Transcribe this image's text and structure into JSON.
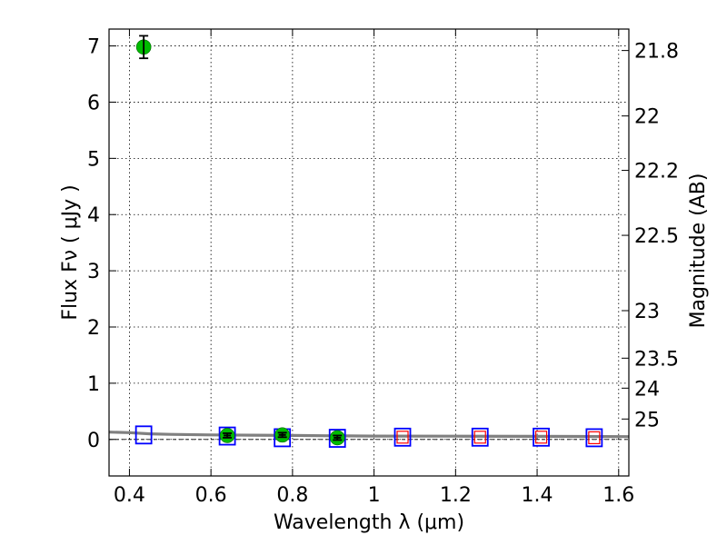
{
  "chart_data": {
    "type": "scatter",
    "xlabel": "Wavelength  λ (μm)",
    "ylabel": "Flux  Fν  ( μJy )",
    "y2label": "Magnitude (AB)",
    "xlim": [
      0.35,
      1.625
    ],
    "ylim": [
      -0.65,
      7.3
    ],
    "grid": true,
    "x_ticks": [
      {
        "value": 0.4,
        "label": "0.4"
      },
      {
        "value": 0.6,
        "label": "0.6"
      },
      {
        "value": 0.8,
        "label": "0.8"
      },
      {
        "value": 1.0,
        "label": "1"
      },
      {
        "value": 1.2,
        "label": "1.2"
      },
      {
        "value": 1.4,
        "label": "1.4"
      },
      {
        "value": 1.6,
        "label": "1.6"
      }
    ],
    "y_ticks": [
      {
        "value": 0,
        "label": "0"
      },
      {
        "value": 1,
        "label": "1"
      },
      {
        "value": 2,
        "label": "2"
      },
      {
        "value": 3,
        "label": "3"
      },
      {
        "value": 4,
        "label": "4"
      },
      {
        "value": 5,
        "label": "5"
      },
      {
        "value": 6,
        "label": "6"
      },
      {
        "value": 7,
        "label": "7"
      }
    ],
    "y2_ticks": [
      {
        "mag": 21.8,
        "label": "21.8"
      },
      {
        "mag": 22.0,
        "label": "22"
      },
      {
        "mag": 22.2,
        "label": "22.2"
      },
      {
        "mag": 22.5,
        "label": "22.5"
      },
      {
        "mag": 23.0,
        "label": "23"
      },
      {
        "mag": 23.5,
        "label": "23.5"
      },
      {
        "mag": 24.0,
        "label": "24"
      },
      {
        "mag": 25.0,
        "label": "25"
      }
    ],
    "series": [
      {
        "marker": "circle",
        "color": "#00bb00",
        "points": [
          {
            "x": 0.435,
            "y": 6.98,
            "err": 0.2
          },
          {
            "x": 0.64,
            "y": 0.07,
            "err": 0.04
          },
          {
            "x": 0.775,
            "y": 0.08,
            "err": 0.04
          },
          {
            "x": 0.91,
            "y": 0.03,
            "err": 0.04
          }
        ]
      },
      {
        "marker": "open-square",
        "color": "#0000ff",
        "points": [
          {
            "x": 0.435,
            "y": 0.08
          },
          {
            "x": 0.64,
            "y": 0.06
          },
          {
            "x": 0.775,
            "y": 0.03
          },
          {
            "x": 0.91,
            "y": 0.02
          },
          {
            "x": 1.07,
            "y": 0.04
          },
          {
            "x": 1.26,
            "y": 0.04
          },
          {
            "x": 1.41,
            "y": 0.04
          },
          {
            "x": 1.54,
            "y": 0.03
          }
        ]
      },
      {
        "marker": "small-open-square",
        "color": "#ff0000",
        "points": [
          {
            "x": 1.07,
            "y": 0.04
          },
          {
            "x": 1.26,
            "y": 0.04
          },
          {
            "x": 1.41,
            "y": 0.04
          },
          {
            "x": 1.54,
            "y": 0.03
          }
        ]
      },
      {
        "marker": "line",
        "color": "#808080",
        "points": [
          {
            "x": 0.35,
            "y": 0.13
          },
          {
            "x": 0.4,
            "y": 0.12
          },
          {
            "x": 0.45,
            "y": 0.1
          },
          {
            "x": 0.5,
            "y": 0.09
          },
          {
            "x": 0.6,
            "y": 0.08
          },
          {
            "x": 0.7,
            "y": 0.075
          },
          {
            "x": 0.8,
            "y": 0.07
          },
          {
            "x": 0.9,
            "y": 0.065
          },
          {
            "x": 1.0,
            "y": 0.06
          },
          {
            "x": 1.2,
            "y": 0.058
          },
          {
            "x": 1.4,
            "y": 0.055
          },
          {
            "x": 1.625,
            "y": 0.05
          }
        ]
      }
    ],
    "zero_line": {
      "y": 0,
      "color": "#000000",
      "style": "dashed"
    }
  }
}
